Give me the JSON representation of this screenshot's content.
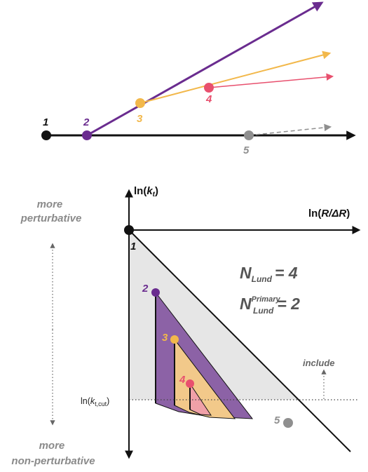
{
  "colors": {
    "black": "#111111",
    "purple": "#6a2c8f",
    "orange": "#f2b84b",
    "pink": "#e8506e",
    "gray": "#8f8f8f",
    "triangle_fill": "#e6e6e6",
    "purple_fill": "#8c62a6",
    "orange_fill": "#f2c98a",
    "pink_fill": "#f0a0a8"
  },
  "top": {
    "emission_labels": [
      "1",
      "2",
      "3",
      "4",
      "5"
    ]
  },
  "bottom": {
    "y_axis_label_pre": "ln(",
    "y_axis_label_var": "k",
    "y_axis_label_sub": "t",
    "y_axis_label_post": ")",
    "x_axis_label_pre": "ln(",
    "x_axis_label_var": "R/ΔR",
    "x_axis_label_post": ")",
    "origin_label": "1",
    "emission_labels": [
      "2",
      "3",
      "4",
      "5"
    ],
    "more_pert_line1": "more",
    "more_pert_line2": "perturbative",
    "more_nonpert_line1": "more",
    "more_nonpert_line2": "non-perturbative",
    "cut_label_pre": "ln(",
    "cut_label_var": "k",
    "cut_label_sub": "t,cut",
    "cut_label_post": ")",
    "include_label": "include",
    "n_lund_symbol": "N",
    "n_lund_sub": "Lund",
    "n_lund_value": "= 4",
    "n_primary_symbol": "N",
    "n_primary_sup": "Primary",
    "n_primary_sub": "Lund",
    "n_primary_value": "= 2"
  }
}
